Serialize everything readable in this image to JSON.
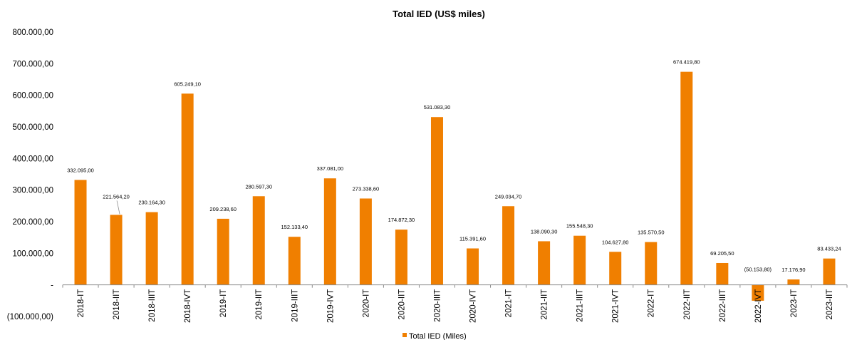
{
  "chart_data": {
    "type": "bar",
    "title": "Total IED (US$ miles)",
    "categories": [
      "2018-IT",
      "2018-IIT",
      "2018-IIIT",
      "2018-IVT",
      "2019-IT",
      "2019-IIT",
      "2019-IIIT",
      "2019-IVT",
      "2020-IT",
      "2020-IIT",
      "2020-IIIT",
      "2020-IVT",
      "2021-IT",
      "2021-IIT",
      "2021-IIIT",
      "2021-IVT",
      "2022-IT",
      "2022-IIT",
      "2022-IIIT",
      "2022-IVT",
      "2023-IT",
      "2023-IIT"
    ],
    "series": [
      {
        "name": "Total IED (Miles)",
        "color": "#F07F00",
        "values": [
          332095.0,
          221564.2,
          230164.3,
          605249.1,
          209238.6,
          280597.3,
          152133.4,
          337081.0,
          273338.6,
          174872.3,
          531083.3,
          115391.6,
          249034.7,
          138090.3,
          155548.3,
          104627.8,
          135570.5,
          674419.8,
          69205.5,
          -50153.8,
          17176.9,
          83433.24
        ]
      }
    ],
    "data_labels": [
      "332.095,00",
      "221.564,20",
      "230.164,30",
      "605.249,10",
      "209.238,60",
      "280.597,30",
      "152.133,40",
      "337.081,00",
      "273.338,60",
      "174.872,30",
      "531.083,30",
      "115.391,60",
      "249.034,70",
      "138.090,30",
      "155.548,30",
      "104.627,80",
      "135.570,50",
      "674.419,80",
      "69.205,50",
      "(50.153,80)",
      "17.176,90",
      "83.433,24"
    ],
    "y_ticks": [
      {
        "value": 800000,
        "label": "800.000,00"
      },
      {
        "value": 700000,
        "label": "700.000,00"
      },
      {
        "value": 600000,
        "label": "600.000,00"
      },
      {
        "value": 500000,
        "label": "500.000,00"
      },
      {
        "value": 400000,
        "label": "400.000,00"
      },
      {
        "value": 300000,
        "label": "300.000,00"
      },
      {
        "value": 200000,
        "label": "200.000,00"
      },
      {
        "value": 100000,
        "label": "100.000,00"
      },
      {
        "value": 0,
        "label": "-"
      },
      {
        "value": -100000,
        "label": "(100.000,00)"
      }
    ],
    "ylim": [
      -100000,
      800000
    ],
    "grid": false,
    "legend_position": "bottom-center"
  }
}
